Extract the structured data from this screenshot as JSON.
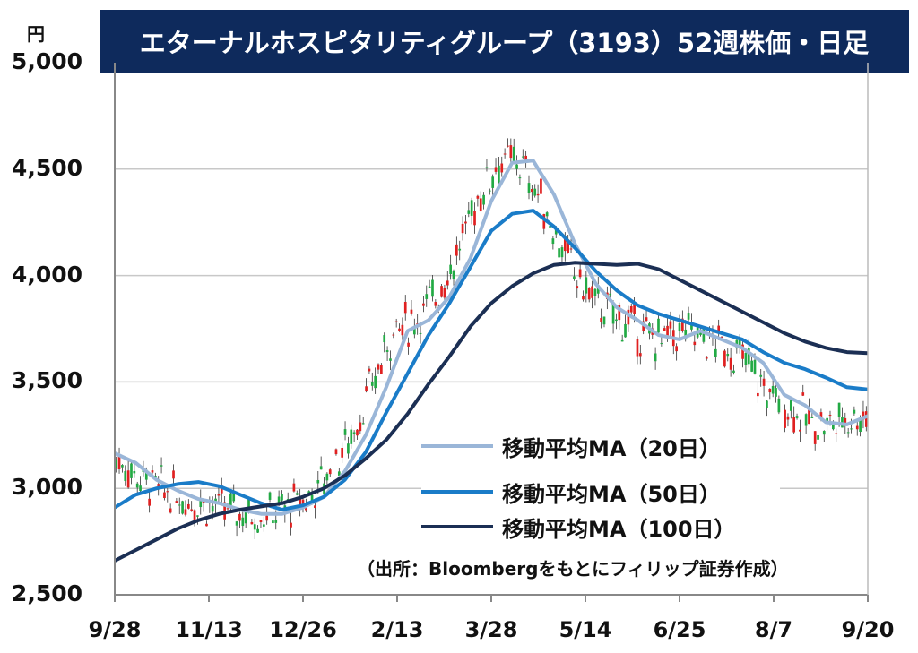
{
  "title": "エターナルホスピタリティグループ（3193）52週株価・日足",
  "unit": "円",
  "source": "（出所：Bloombergをもとにフィリップ証券作成）",
  "colors": {
    "title_bg": "#0e2a5c",
    "up": "#e02020",
    "down": "#22aa44",
    "ma20": "#9ab6d8",
    "ma50": "#1a7cc8",
    "ma100": "#1b2f54",
    "grid": "#c8c8c8"
  },
  "chart_data": {
    "type": "candlestick",
    "y_ticks": [
      "5,000",
      "4,500",
      "4,000",
      "3,500",
      "3,000",
      "2,500"
    ],
    "y_tick_values": [
      5000,
      4500,
      4000,
      3500,
      3000,
      2500
    ],
    "ylim": [
      2500,
      5000
    ],
    "x_ticks": [
      "9/28",
      "11/13",
      "12/26",
      "2/13",
      "3/28",
      "5/14",
      "6/25",
      "8/7",
      "9/20"
    ],
    "grid": true,
    "legend_position": "bottom-right",
    "series": [
      {
        "name": "移動平均MA（20日）",
        "color_key": "ma20",
        "values": [
          3165,
          3120,
          3040,
          2990,
          2950,
          2930,
          2900,
          2880,
          2880,
          2910,
          2960,
          3080,
          3250,
          3480,
          3740,
          3790,
          3900,
          4080,
          4350,
          4530,
          4540,
          4380,
          4150,
          3960,
          3850,
          3790,
          3720,
          3700,
          3740,
          3700,
          3660,
          3590,
          3440,
          3390,
          3310,
          3300,
          3340
        ]
      },
      {
        "name": "移動平均MA（50日）",
        "color_key": "ma50",
        "values": [
          2910,
          2970,
          3000,
          3020,
          3030,
          3010,
          2970,
          2930,
          2900,
          2920,
          2960,
          3040,
          3170,
          3360,
          3540,
          3720,
          3870,
          4040,
          4210,
          4290,
          4305,
          4230,
          4130,
          4020,
          3930,
          3860,
          3820,
          3790,
          3760,
          3730,
          3700,
          3640,
          3590,
          3560,
          3520,
          3475,
          3465
        ]
      },
      {
        "name": "移動平均MA（100日）",
        "color_key": "ma100",
        "values": [
          2660,
          2710,
          2760,
          2810,
          2850,
          2880,
          2900,
          2915,
          2930,
          2960,
          3000,
          3060,
          3140,
          3230,
          3350,
          3490,
          3620,
          3760,
          3870,
          3950,
          4010,
          4050,
          4060,
          4055,
          4050,
          4055,
          4030,
          3980,
          3930,
          3880,
          3830,
          3780,
          3730,
          3690,
          3660,
          3640,
          3635
        ]
      }
    ]
  }
}
